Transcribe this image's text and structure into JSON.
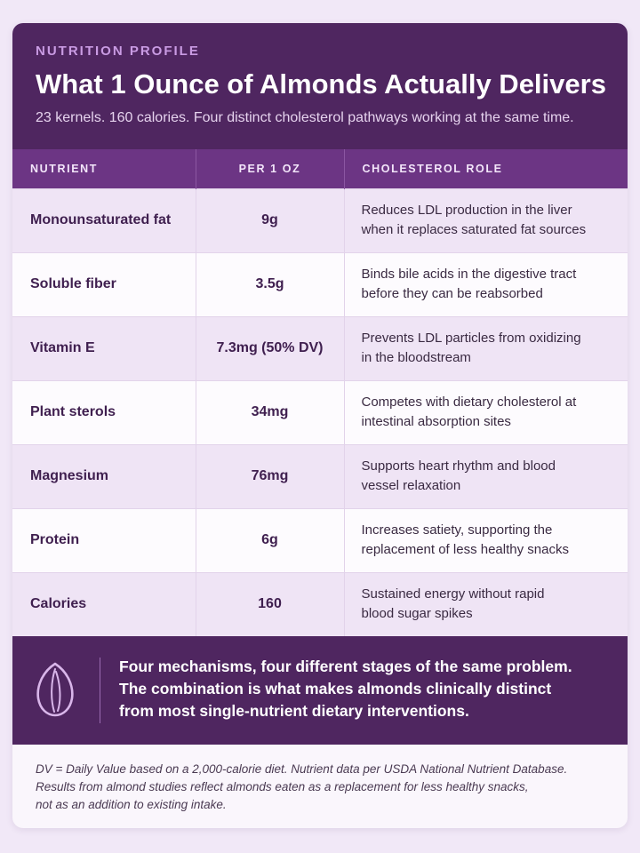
{
  "header": {
    "eyebrow": "NUTRITION PROFILE",
    "title": "What 1 Ounce of Almonds Actually Delivers",
    "subtitle": "23 kernels. 160 calories. Four distinct cholesterol pathways working at the same time."
  },
  "table": {
    "columns": [
      "NUTRIENT",
      "PER 1 OZ",
      "CHOLESTEROL ROLE"
    ],
    "rows": [
      {
        "nutrient": "Monounsaturated fat",
        "amount": "9g",
        "role_line1": "Reduces LDL production in the liver",
        "role_line2": "when it replaces saturated fat sources"
      },
      {
        "nutrient": "Soluble fiber",
        "amount": "3.5g",
        "role_line1": "Binds bile acids in the digestive tract",
        "role_line2": "before they can be reabsorbed"
      },
      {
        "nutrient": "Vitamin E",
        "amount": "7.3mg (50% DV)",
        "role_line1": "Prevents LDL particles from oxidizing",
        "role_line2": "in the bloodstream"
      },
      {
        "nutrient": "Plant sterols",
        "amount": "34mg",
        "role_line1": "Competes with dietary cholesterol at",
        "role_line2": "intestinal absorption sites"
      },
      {
        "nutrient": "Magnesium",
        "amount": "76mg",
        "role_line1": "Supports heart rhythm and blood",
        "role_line2": "vessel relaxation"
      },
      {
        "nutrient": "Protein",
        "amount": "6g",
        "role_line1": "Increases satiety, supporting the",
        "role_line2": "replacement of less healthy snacks"
      },
      {
        "nutrient": "Calories",
        "amount": "160",
        "role_line1": "Sustained energy without rapid",
        "role_line2": "blood sugar spikes"
      }
    ]
  },
  "callout": {
    "icon": "almond-icon",
    "line1": "Four mechanisms, four different stages of the same problem.",
    "line2": "The combination is what makes almonds clinically distinct",
    "line3": "from most single-nutrient dietary interventions."
  },
  "footer": {
    "line1": "DV = Daily Value based on a 2,000-calorie diet. Nutrient data per USDA National Nutrient Database.",
    "line2": "Results from almond studies reflect almonds eaten as a replacement for less healthy snacks,",
    "line3": "not as an addition to existing intake."
  },
  "colors": {
    "header_bg": "#4f2660",
    "table_header_bg": "#6c3584",
    "eyebrow": "#c99be3",
    "row_tint": "#efe4f5",
    "page_bg": "#f1e8f7"
  }
}
